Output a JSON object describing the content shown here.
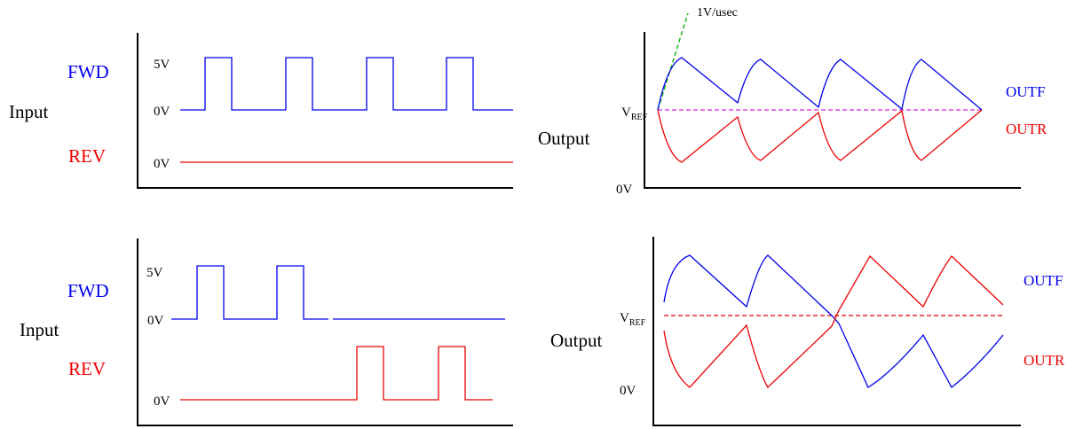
{
  "colors": {
    "fwd": "#0000ee",
    "rev": "#ee0000",
    "axis": "#000000",
    "vref_top": "#dd22dd",
    "vref_bottom": "#dd0000",
    "slope": "#00aa00"
  },
  "top_left": {
    "side_label": "Input",
    "fwd_label": "FWD",
    "rev_label": "REV",
    "level_5v": "5V",
    "level_0v_fwd": "0V",
    "level_0v_rev": "0V"
  },
  "top_right": {
    "side_label": "Output",
    "slope_label": "1V/usec",
    "vref_main": "V",
    "vref_sub": "REF",
    "zero_label": "0V",
    "outf_label": "OUTF",
    "outr_label": "OUTR"
  },
  "bottom_left": {
    "side_label": "Input",
    "fwd_label": "FWD",
    "rev_label": "REV",
    "level_5v": "5V",
    "level_0v_fwd": "0V",
    "level_0v_rev": "0V"
  },
  "bottom_right": {
    "side_label": "Output",
    "vref_main": "V",
    "vref_sub": "REF",
    "zero_label": "0V",
    "outf_label": "OUTF",
    "outr_label": "OUTR"
  }
}
